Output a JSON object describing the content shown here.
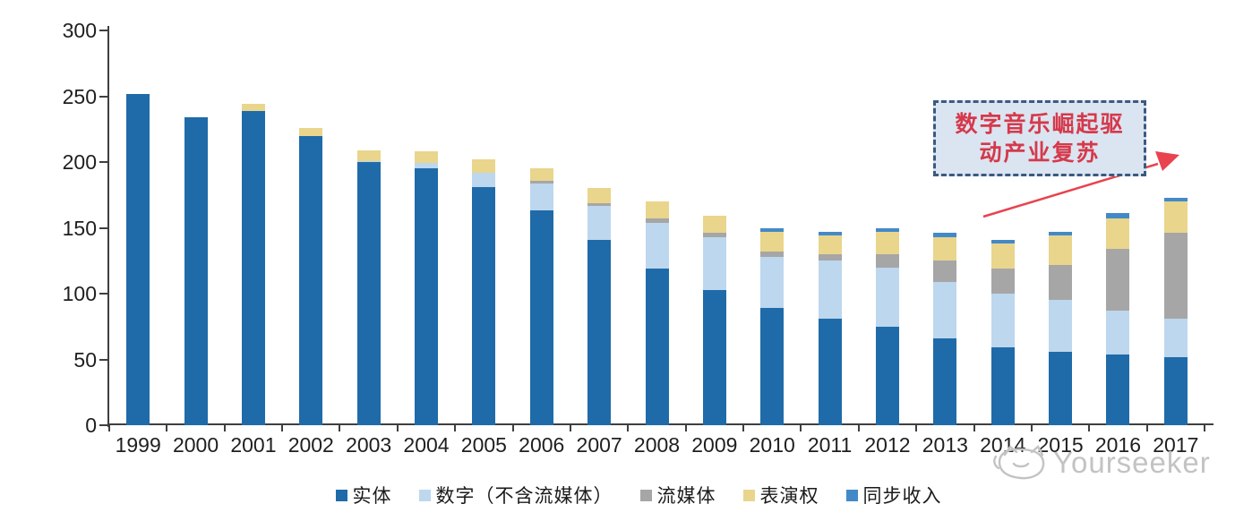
{
  "chart_data": {
    "type": "bar",
    "stacked": true,
    "categories": [
      "1999",
      "2000",
      "2001",
      "2002",
      "2003",
      "2004",
      "2005",
      "2006",
      "2007",
      "2008",
      "2009",
      "2010",
      "2011",
      "2012",
      "2013",
      "2014",
      "2015",
      "2016",
      "2017"
    ],
    "series": [
      {
        "name": "实体",
        "color": "#1F6BA9",
        "values": [
          252,
          234,
          239,
          220,
          200,
          195,
          181,
          163,
          141,
          119,
          103,
          89,
          81,
          75,
          66,
          59,
          56,
          54,
          52
        ]
      },
      {
        "name": "数字（不含流媒体）",
        "color": "#BDD7EE",
        "values": [
          0,
          0,
          0,
          0,
          1,
          4,
          11,
          21,
          26,
          35,
          40,
          39,
          44,
          45,
          43,
          41,
          39,
          33,
          29
        ]
      },
      {
        "name": "流媒体",
        "color": "#A6A6A6",
        "values": [
          0,
          0,
          0,
          0,
          0,
          0,
          0,
          2,
          2,
          3,
          3,
          4,
          5,
          10,
          16,
          19,
          27,
          47,
          65
        ]
      },
      {
        "name": "表演权",
        "color": "#E9D58C",
        "values": [
          0,
          0,
          5,
          6,
          8,
          9,
          10,
          9,
          11,
          13,
          13,
          15,
          14,
          17,
          18,
          19,
          22,
          23,
          24
        ]
      },
      {
        "name": "同步收入",
        "color": "#4489C7",
        "values": [
          0,
          0,
          0,
          0,
          0,
          0,
          0,
          0,
          0,
          0,
          0,
          3,
          3,
          3,
          3,
          3,
          3,
          4,
          3
        ]
      }
    ],
    "title": "",
    "xlabel": "",
    "ylabel": "",
    "ylim": [
      0,
      300
    ],
    "yticks": [
      0,
      50,
      100,
      150,
      200,
      250,
      300
    ],
    "grid": false,
    "legend_position": "bottom"
  },
  "annotation": {
    "text": "数字音乐崛起驱\n动产业复苏",
    "text_color": "#d5394b",
    "box_fill": "#dbe5f1",
    "border_color": "#3c5a80",
    "arrow_color": "#e8434f"
  },
  "watermark": {
    "brand": "Yourseeker",
    "color": "#c3c3c3"
  }
}
